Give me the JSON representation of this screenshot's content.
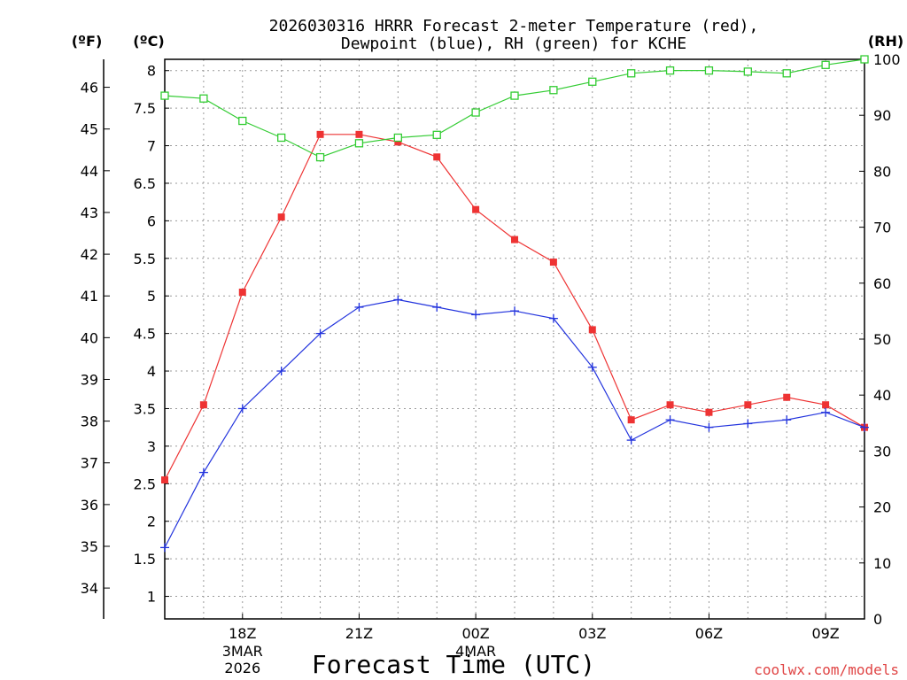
{
  "chart_data": {
    "type": "line",
    "title": [
      "2026030316 HRRR Forecast 2-meter Temperature (red),",
      "Dewpoint (blue), RH (green) for KCHE"
    ],
    "xlabel": "Forecast Time (UTC)",
    "watermark": "coolwx.com/models",
    "left_unit_f": "(ºF)",
    "left_unit_c": "(ºC)",
    "right_unit": "(RH)",
    "x_hours": [
      16,
      17,
      18,
      19,
      20,
      21,
      22,
      23,
      24,
      25,
      26,
      27,
      28,
      29,
      30,
      31,
      32,
      33,
      34
    ],
    "xlim": [
      16,
      34
    ],
    "x_ticks": [
      {
        "hour": 18,
        "label": "18Z",
        "sub": [
          "3MAR",
          "2026"
        ]
      },
      {
        "hour": 21,
        "label": "21Z",
        "sub": []
      },
      {
        "hour": 24,
        "label": "00Z",
        "sub": [
          "4MAR"
        ]
      },
      {
        "hour": 27,
        "label": "03Z",
        "sub": []
      },
      {
        "hour": 30,
        "label": "06Z",
        "sub": []
      },
      {
        "hour": 33,
        "label": "09Z",
        "sub": []
      }
    ],
    "ylim_c": [
      0.7,
      8.15
    ],
    "y_ticks_c": [
      "1",
      "1.5",
      "2",
      "2.5",
      "3",
      "3.5",
      "4",
      "4.5",
      "5",
      "5.5",
      "6",
      "6.5",
      "7",
      "7.5",
      "8"
    ],
    "y_ticks_f": [
      "34",
      "35",
      "36",
      "37",
      "38",
      "39",
      "40",
      "41",
      "42",
      "43",
      "44",
      "45",
      "46"
    ],
    "ylim_rh": [
      0,
      100
    ],
    "y_ticks_rh": [
      "0",
      "10",
      "20",
      "30",
      "40",
      "50",
      "60",
      "70",
      "80",
      "90",
      "100"
    ],
    "series": [
      {
        "name": "Temperature",
        "unit": "C",
        "color": "#ee3333",
        "marker": "filled-square",
        "values": [
          2.55,
          3.55,
          5.05,
          6.05,
          7.15,
          7.15,
          7.05,
          6.85,
          6.15,
          5.75,
          5.45,
          4.55,
          3.35,
          3.55,
          3.45,
          3.55,
          3.65,
          3.55,
          3.25
        ]
      },
      {
        "name": "Dewpoint",
        "unit": "C",
        "color": "#2233dd",
        "marker": "plus",
        "values": [
          1.65,
          2.65,
          3.5,
          4.0,
          4.5,
          4.85,
          4.95,
          4.85,
          4.75,
          4.8,
          4.7,
          4.05,
          3.08,
          3.35,
          3.25,
          3.3,
          3.35,
          3.45,
          3.25
        ]
      },
      {
        "name": "RH",
        "unit": "%",
        "color": "#33cc33",
        "marker": "open-square",
        "values": [
          93.5,
          93.0,
          89.0,
          86.0,
          82.5,
          85.0,
          86.0,
          86.5,
          90.5,
          93.5,
          94.5,
          96.0,
          97.5,
          98.0,
          98.0,
          97.8,
          97.5,
          99.0,
          100.0
        ]
      }
    ]
  }
}
